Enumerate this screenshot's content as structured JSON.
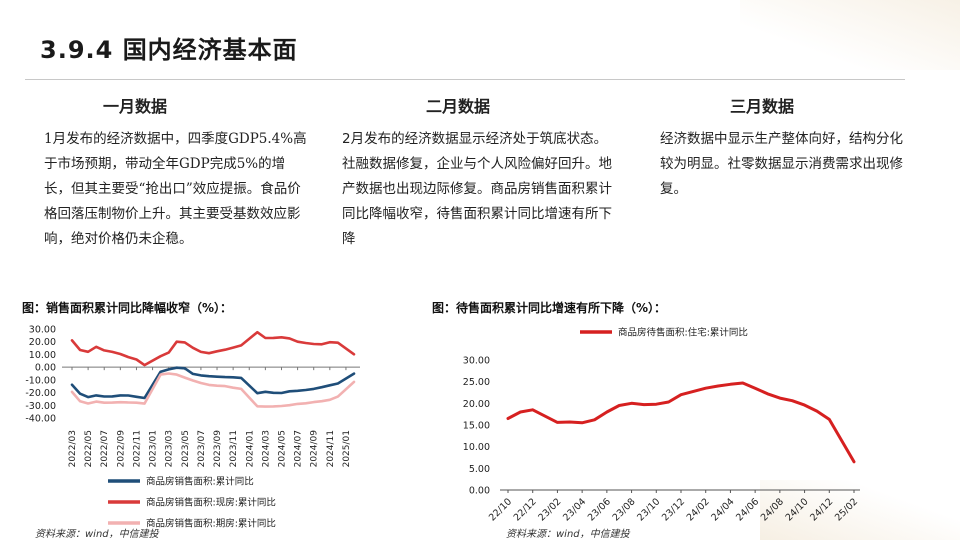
{
  "page": {
    "title": "3.9.4 国内经济基本面"
  },
  "columns": [
    {
      "heading": "一月数据",
      "text": "1月发布的经济数据中，四季度GDP5.4%高于市场预期，带动全年GDP完成5%的增长，但其主要受“抢出口”效应提振。食品价格回落压制物价上升。其主要受基数效应影响，绝对价格仍未企稳。"
    },
    {
      "heading": "二月数据",
      "text": "2月发布的经济数据显示经济处于筑底状态。社融数据修复，企业与个人风险偏好回升。地产数据也出现边际修复。商品房销售面积累计同比降幅收窄，待售面积累计同比增速有所下降"
    },
    {
      "heading": "三月数据",
      "text": "经济数据中显示生产整体向好，结构分化较为明显。社零数据显示消费需求出现修复。"
    }
  ],
  "charts": {
    "left_title": "图：销售面积累计同比降幅收窄（%）：",
    "right_title": "图：待售面积累计同比增速有所下降（%）：",
    "left_source": "资料来源：wind，中信建投",
    "right_source": "资料来源：wind，中信建投"
  },
  "chart_data": [
    {
      "type": "line",
      "ylim": [
        -40,
        30
      ],
      "yticks": [
        "30.00",
        "20.00",
        "10.00",
        "0.00",
        "-10.00",
        "-20.00",
        "-30.00",
        "-40.00"
      ],
      "x": [
        "2022/03",
        "2022/04",
        "2022/05",
        "2022/06",
        "2022/07",
        "2022/08",
        "2022/09",
        "2022/10",
        "2022/11",
        "2022/12",
        "2023/01",
        "2023/02",
        "2023/03",
        "2023/04",
        "2023/05",
        "2023/06",
        "2023/07",
        "2023/08",
        "2023/09",
        "2023/10",
        "2023/11",
        "2023/12",
        "2024/01",
        "2024/02",
        "2024/03",
        "2024/04",
        "2024/05",
        "2024/06",
        "2024/07",
        "2024/08",
        "2024/09",
        "2024/10",
        "2024/11",
        "2024/12",
        "2025/01",
        "2025/02"
      ],
      "xtick_labels": [
        "2022/03",
        "2022/05",
        "2022/07",
        "2022/09",
        "2022/11",
        "2023/01",
        "2023/03",
        "2023/05",
        "2023/07",
        "2023/09",
        "2023/11",
        "2024/01",
        "2024/03",
        "2024/05",
        "2024/07",
        "2024/09",
        "2024/11",
        "2025/01"
      ],
      "series": [
        {
          "name": "商品房销售面积:累计同比",
          "color": "#1f4e79",
          "values": [
            -13.8,
            -20.9,
            -23.6,
            -22.2,
            -23.1,
            -23.0,
            -22.2,
            -22.3,
            -23.3,
            -24.3,
            null,
            -3.6,
            -1.8,
            -0.4,
            -0.9,
            -5.3,
            -6.5,
            -7.1,
            -7.5,
            -7.8,
            -8.0,
            -8.5,
            null,
            -20.5,
            -19.4,
            -20.2,
            -20.3,
            -19.0,
            -18.6,
            -18.0,
            -17.1,
            -15.8,
            -14.3,
            -12.9,
            null,
            -5.1
          ]
        },
        {
          "name": "商品房销售面积:现房:累计同比",
          "color": "#d93a3a",
          "values": [
            21.0,
            13.5,
            12.1,
            16.0,
            13.2,
            12.0,
            10.3,
            7.9,
            6.0,
            1.6,
            null,
            8.6,
            11.4,
            20.0,
            19.5,
            15.2,
            12.0,
            11.0,
            12.5,
            13.7,
            15.4,
            17.1,
            null,
            27.5,
            22.9,
            23.0,
            23.5,
            22.6,
            20.0,
            19.0,
            18.2,
            18.0,
            19.6,
            19.2,
            null,
            10.1
          ]
        },
        {
          "name": "商品房销售面积:期房:累计同比",
          "color": "#f2b1b1",
          "values": [
            -19.5,
            -26.9,
            -28.6,
            -27.1,
            -28.0,
            -27.9,
            -27.6,
            -27.8,
            -28.0,
            -28.7,
            null,
            -5.9,
            -5.0,
            -5.9,
            -8.2,
            -10.5,
            -12.5,
            -14.0,
            -14.6,
            -14.9,
            -16.2,
            -17.1,
            null,
            -30.8,
            -31.0,
            -30.9,
            -30.6,
            -29.9,
            -28.9,
            -28.4,
            -27.5,
            -26.8,
            -25.7,
            -23.2,
            null,
            -11.6
          ]
        }
      ]
    },
    {
      "type": "line",
      "ylim": [
        0,
        30
      ],
      "yticks": [
        "30.00",
        "25.00",
        "20.00",
        "15.00",
        "10.00",
        "5.00",
        "0.00"
      ],
      "x": [
        "22/10",
        "22/11",
        "22/12",
        "23/01",
        "23/02",
        "23/03",
        "23/04",
        "23/05",
        "23/06",
        "23/07",
        "23/08",
        "23/09",
        "23/10",
        "23/11",
        "23/12",
        "24/01",
        "24/02",
        "24/03",
        "24/04",
        "24/05",
        "24/06",
        "24/07",
        "24/08",
        "24/09",
        "24/10",
        "24/11",
        "24/12",
        "25/01",
        "25/02"
      ],
      "xtick_labels": [
        "22/10",
        "22/12",
        "23/02",
        "23/04",
        "23/06",
        "23/08",
        "23/10",
        "23/12",
        "24/02",
        "24/04",
        "24/06",
        "24/08",
        "24/10",
        "24/12",
        "25/02"
      ],
      "series": [
        {
          "name": "商品房待售面积:住宅:累计同比",
          "color": "#d62020",
          "values": [
            16.5,
            18.0,
            18.5,
            null,
            15.6,
            15.7,
            15.5,
            16.2,
            18.0,
            19.5,
            20.0,
            19.7,
            19.8,
            20.3,
            22.0,
            null,
            23.5,
            24.0,
            24.4,
            24.7,
            23.5,
            22.2,
            21.2,
            20.6,
            19.6,
            18.2,
            16.3,
            null,
            6.5
          ]
        }
      ]
    }
  ]
}
